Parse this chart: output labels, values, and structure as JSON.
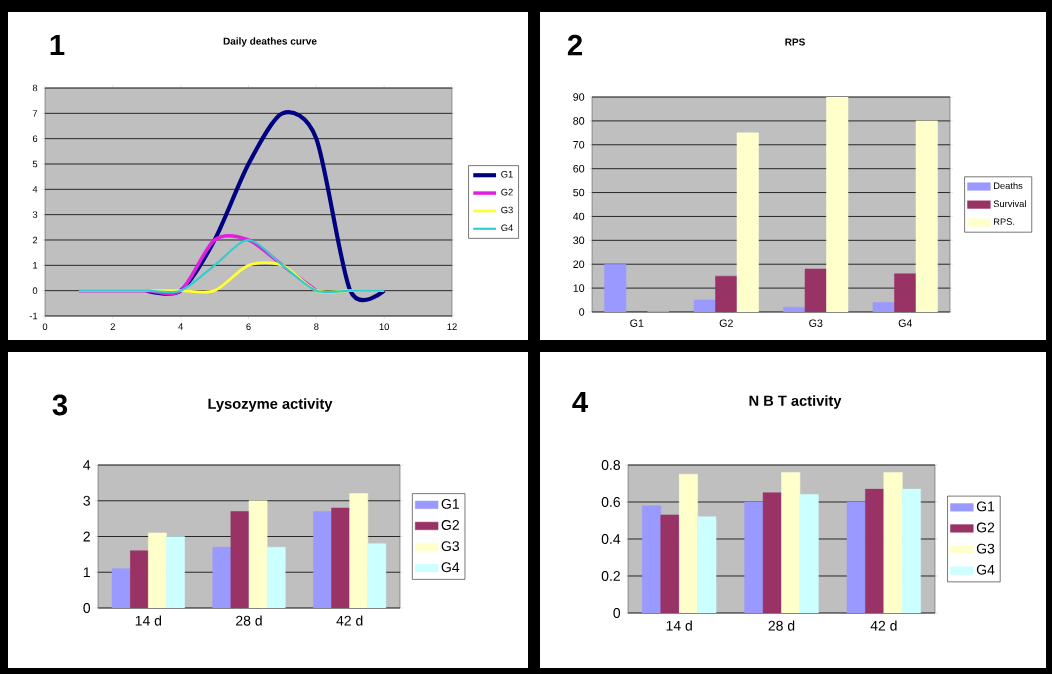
{
  "chart_data": [
    {
      "type": "line",
      "title": "Daily deathes curve",
      "annotations": [
        "1"
      ],
      "x": [
        1,
        2,
        3,
        4,
        5,
        6,
        7,
        8,
        9,
        10
      ],
      "series": [
        {
          "name": "G1",
          "color": "#000080",
          "values": [
            null,
            null,
            0,
            0,
            2,
            5,
            7,
            6,
            0,
            0
          ]
        },
        {
          "name": "G2",
          "color": "#e020e0",
          "values": [
            0,
            0,
            0,
            0,
            2,
            2,
            1,
            0,
            null,
            null
          ]
        },
        {
          "name": "G3",
          "color": "#ffff33",
          "values": [
            0,
            0,
            0,
            0,
            0,
            1,
            1,
            0,
            0,
            0
          ]
        },
        {
          "name": "G4",
          "color": "#33cccc",
          "values": [
            0,
            0,
            0,
            0,
            1,
            2,
            1,
            0,
            0,
            0
          ]
        }
      ],
      "xlim": [
        0,
        12
      ],
      "xticks": [
        0,
        2,
        4,
        6,
        8,
        10,
        12
      ],
      "ylim": [
        -1,
        8
      ],
      "yticks": [
        -1,
        0,
        1,
        2,
        3,
        4,
        5,
        6,
        7,
        8
      ],
      "grid": "y",
      "legend": "right",
      "line_style": "solid"
    },
    {
      "type": "bar",
      "title": "RPS",
      "annotations": [
        "2"
      ],
      "categories": [
        "G1",
        "G2",
        "G3",
        "G4"
      ],
      "series": [
        {
          "name": "Deaths",
          "color": "#9999ff",
          "values": [
            20,
            5,
            2,
            4
          ]
        },
        {
          "name": "Survival",
          "color": "#993366",
          "values": [
            0,
            15,
            18,
            16
          ]
        },
        {
          "name": "RPS.",
          "color": "#ffffcc",
          "values": [
            0,
            75,
            90,
            80
          ]
        }
      ],
      "ylim": [
        0,
        90
      ],
      "yticks": [
        0,
        10,
        20,
        30,
        40,
        50,
        60,
        70,
        80,
        90
      ],
      "grid": "y",
      "legend": "right"
    },
    {
      "type": "bar",
      "title": "Lysozyme activity",
      "annotations": [
        "3"
      ],
      "categories": [
        "14 d",
        "28 d",
        "42 d"
      ],
      "series": [
        {
          "name": "G1",
          "color": "#9999ff",
          "values": [
            1.1,
            1.7,
            2.7
          ]
        },
        {
          "name": "G2",
          "color": "#993366",
          "values": [
            1.6,
            2.7,
            2.8
          ]
        },
        {
          "name": "G3",
          "color": "#ffffcc",
          "values": [
            2.1,
            3.0,
            3.2
          ]
        },
        {
          "name": "G4",
          "color": "#ccffff",
          "values": [
            2.0,
            1.7,
            1.8
          ]
        }
      ],
      "ylim": [
        0,
        4
      ],
      "yticks": [
        0,
        1,
        2,
        3,
        4
      ],
      "grid": "y",
      "legend": "right"
    },
    {
      "type": "bar",
      "title": "N B T activity",
      "annotations": [
        "4"
      ],
      "categories": [
        "14 d",
        "28 d",
        "42 d"
      ],
      "series": [
        {
          "name": "G1",
          "color": "#9999ff",
          "values": [
            0.58,
            0.6,
            0.6
          ]
        },
        {
          "name": "G2",
          "color": "#993366",
          "values": [
            0.53,
            0.65,
            0.67
          ]
        },
        {
          "name": "G3",
          "color": "#ffffcc",
          "values": [
            0.75,
            0.76,
            0.76
          ]
        },
        {
          "name": "G4",
          "color": "#ccffff",
          "values": [
            0.52,
            0.64,
            0.67
          ]
        }
      ],
      "ylim": [
        0,
        0.8
      ],
      "yticks": [
        0,
        0.2,
        0.4,
        0.6,
        0.8
      ],
      "grid": "y",
      "legend": "right"
    }
  ]
}
